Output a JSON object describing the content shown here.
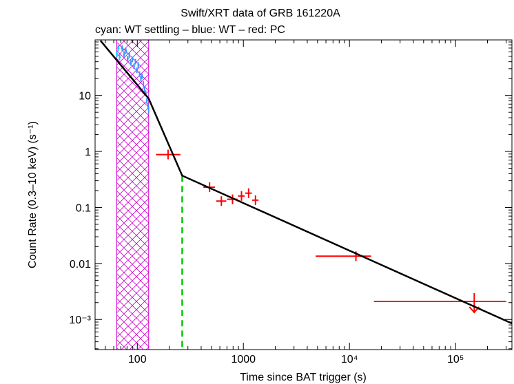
{
  "chart_data": {
    "type": "scatter",
    "title": "Swift/XRT data of GRB 161220A",
    "subtitle": "cyan: WT settling – blue: WT – red: PC",
    "xlabel": "Time since BAT trigger (s)",
    "ylabel": "Count Rate (0.3–10 keV) (s⁻¹)",
    "xscale": "log",
    "yscale": "log",
    "xlim": [
      40,
      340000
    ],
    "ylim": [
      0.00029,
      98
    ],
    "x_ticks": [
      {
        "value": 100,
        "label": "100"
      },
      {
        "value": 1000,
        "label": "1000"
      },
      {
        "value": 10000,
        "label": "10⁴"
      },
      {
        "value": 100000,
        "label": "10⁵"
      }
    ],
    "y_ticks": [
      {
        "value": 10,
        "label": "10"
      },
      {
        "value": 1,
        "label": "1"
      },
      {
        "value": 0.1,
        "label": "0.1"
      },
      {
        "value": 0.01,
        "label": "0.01"
      },
      {
        "value": 0.001,
        "label": "10⁻³"
      }
    ],
    "shaded_region": {
      "x": [
        64,
        128
      ],
      "color": "#cc00cc",
      "pattern": "crosshatch"
    },
    "vline": {
      "x": 265,
      "color": "#00cc00",
      "style": "dashed"
    },
    "model_line": {
      "color": "#000000",
      "points": [
        [
          45,
          95
        ],
        [
          128,
          8.8
        ],
        [
          265,
          0.37
        ],
        [
          340000,
          0.00085
        ]
      ]
    },
    "series": [
      {
        "name": "WT settling",
        "color": "#00ccff",
        "points": [
          [
            64,
            55,
            63,
            66
          ],
          [
            66,
            70,
            65,
            68
          ],
          [
            68,
            48,
            67,
            70
          ]
        ]
      },
      {
        "name": "WT",
        "color": "#3399ff",
        "points": [
          [
            72,
            70,
            70,
            74
          ],
          [
            75,
            55,
            74,
            77
          ],
          [
            78,
            62,
            77,
            80
          ],
          [
            81,
            45,
            80,
            83
          ],
          [
            84,
            52,
            83,
            86
          ],
          [
            87,
            38,
            86,
            89
          ],
          [
            90,
            44,
            89,
            92
          ],
          [
            93,
            33,
            92,
            95
          ],
          [
            96,
            40,
            95,
            98
          ],
          [
            99,
            28,
            98,
            101
          ],
          [
            102,
            35,
            101,
            104
          ],
          [
            105,
            24,
            104,
            107
          ],
          [
            108,
            20,
            107,
            110
          ],
          [
            111,
            22,
            110,
            113
          ],
          [
            114,
            16,
            113,
            116
          ],
          [
            117,
            13,
            116,
            119
          ],
          [
            120,
            11,
            119,
            122
          ],
          [
            123,
            8,
            122,
            125
          ],
          [
            126,
            6.5,
            125,
            128
          ],
          [
            128,
            5.5,
            127,
            129
          ]
        ]
      },
      {
        "name": "PC",
        "color": "#ff0000",
        "points": [
          [
            195,
            0.88,
            150,
            255
          ],
          [
            480,
            0.23,
            420,
            540
          ],
          [
            620,
            0.13,
            555,
            690
          ],
          [
            790,
            0.14,
            700,
            880
          ],
          [
            960,
            0.16,
            890,
            1030
          ],
          [
            1120,
            0.18,
            1040,
            1200
          ],
          [
            1300,
            0.135,
            1210,
            1390
          ],
          [
            11500,
            0.0135,
            4800,
            16000
          ]
        ]
      }
    ],
    "upper_limits": [
      {
        "x": 150000,
        "y": 0.0021,
        "xlo": 17000,
        "xhi": 300000,
        "color": "#ff0000"
      }
    ]
  }
}
